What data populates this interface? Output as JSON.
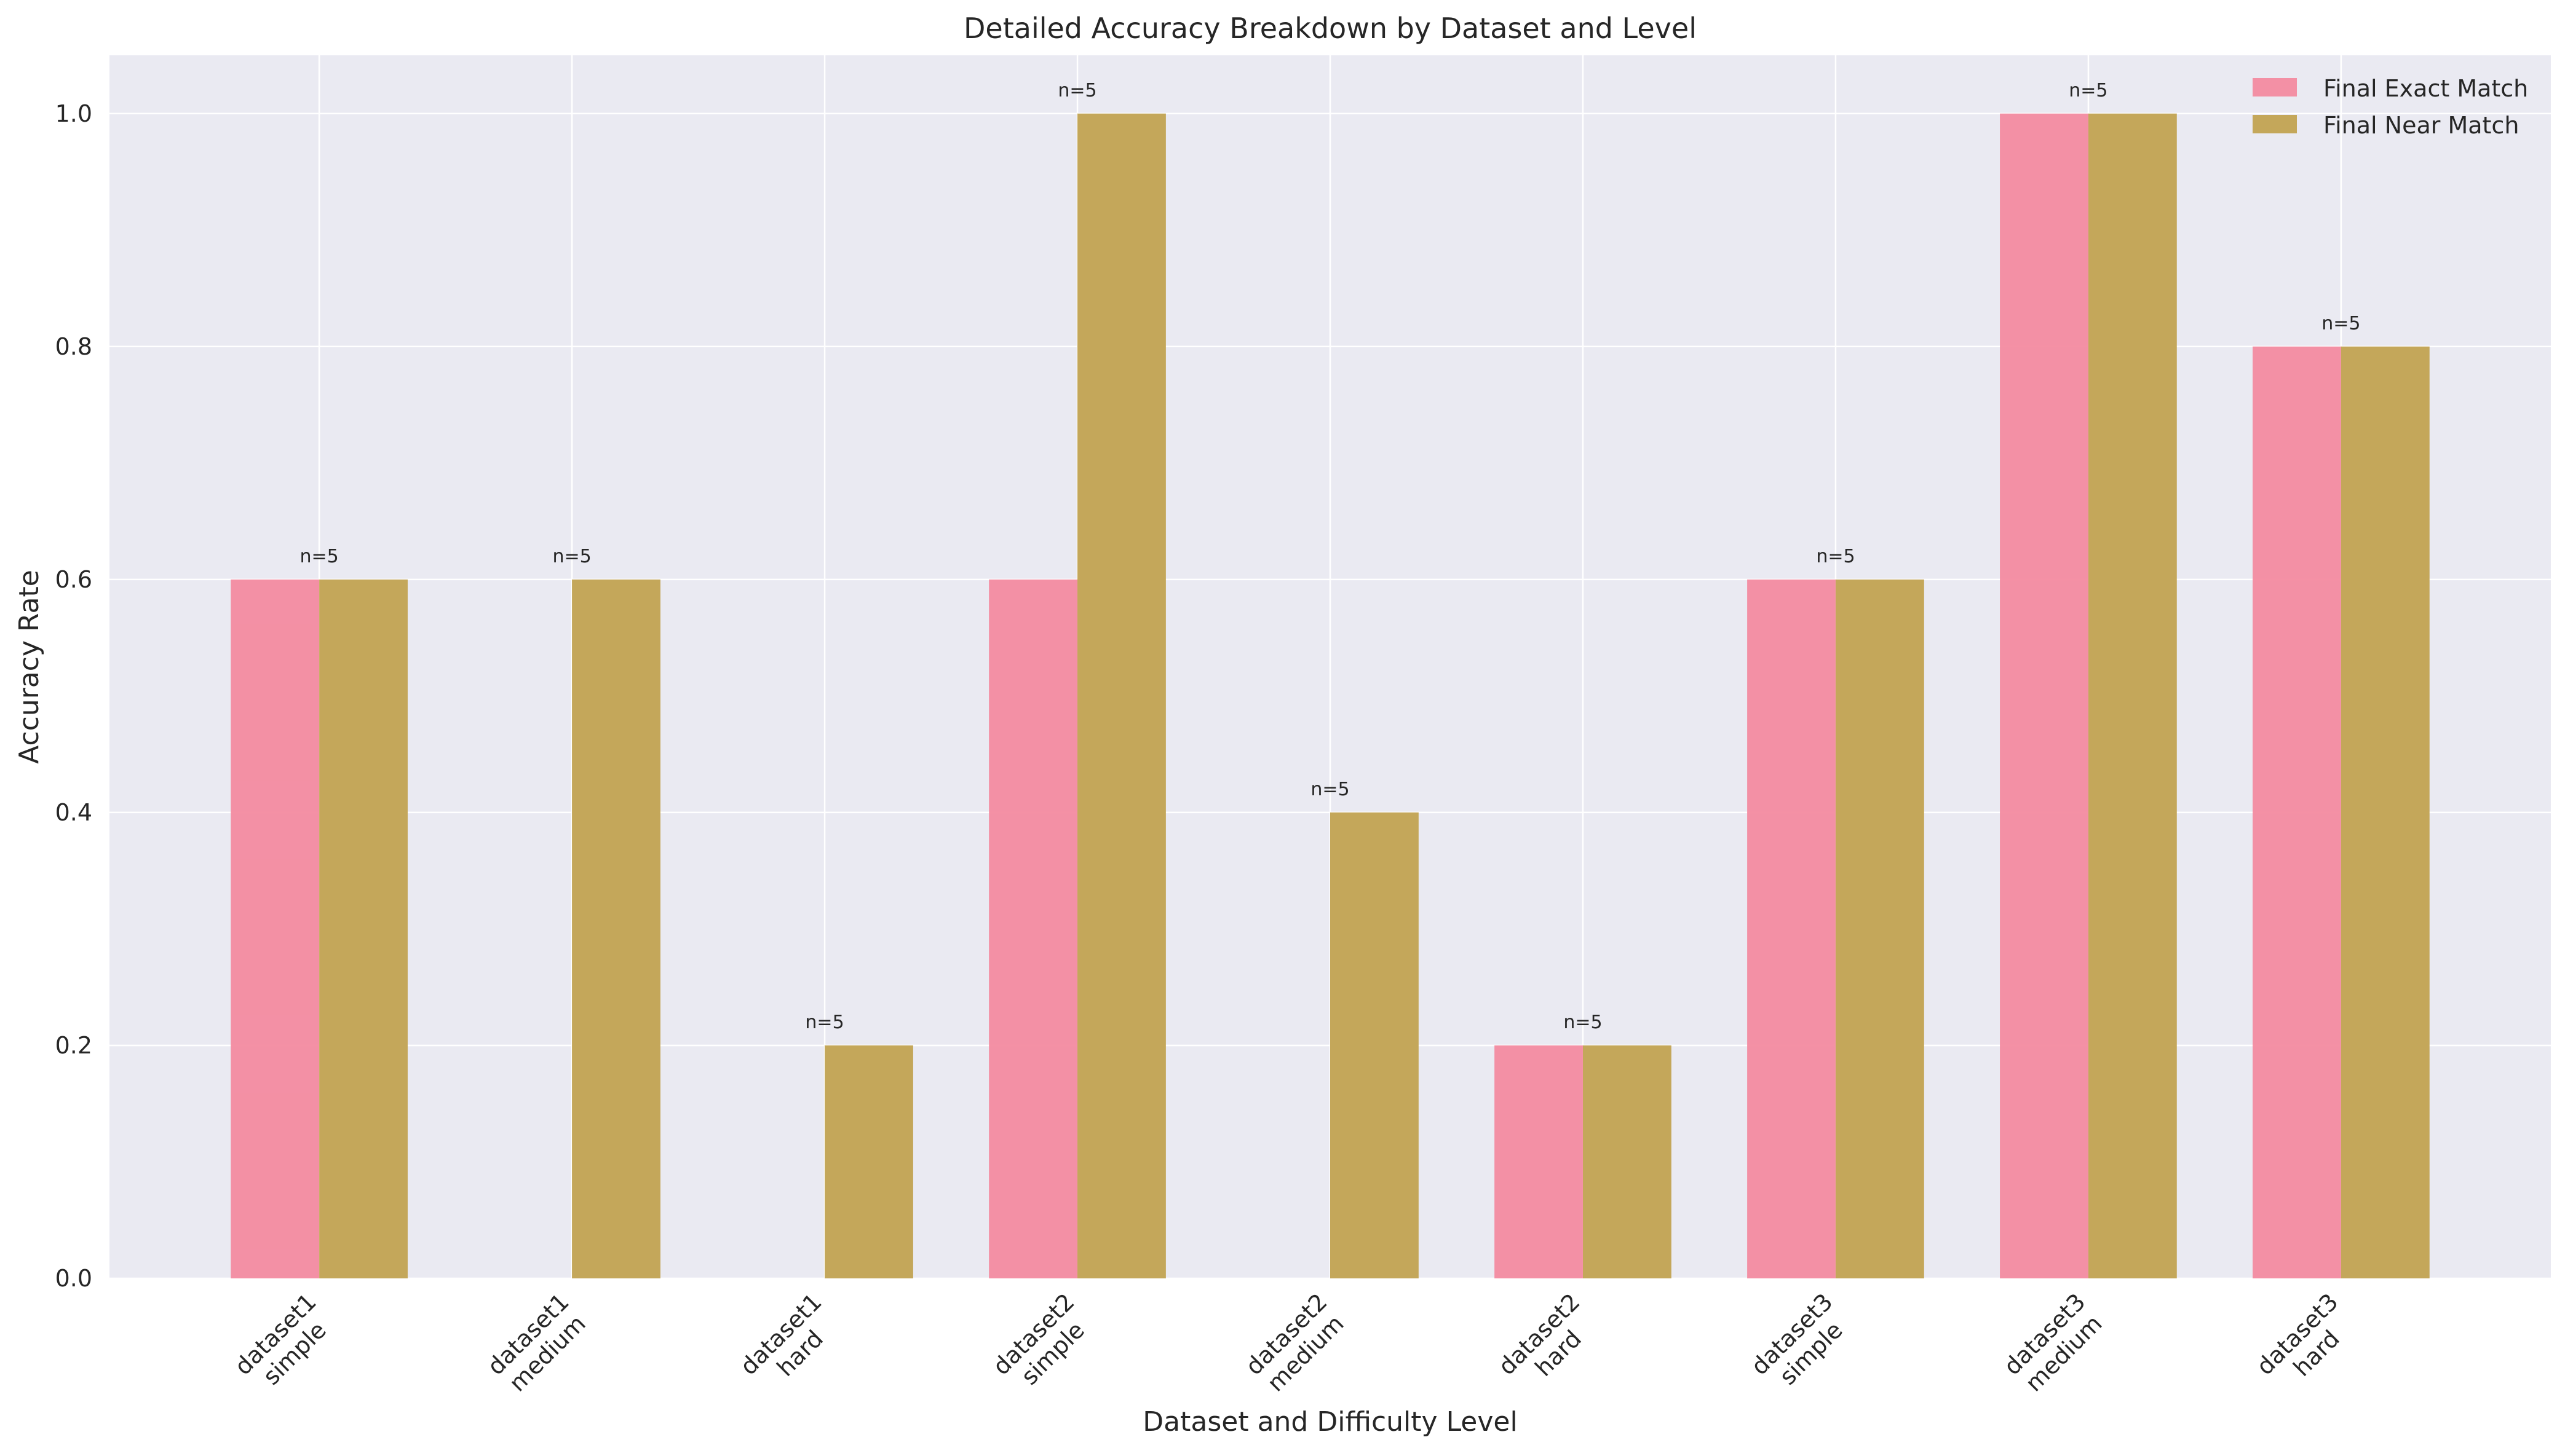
{
  "chart_data": {
    "type": "bar",
    "title": "Detailed Accuracy Breakdown by Dataset and Level",
    "xlabel": "Dataset and Difficulty Level",
    "ylabel": "Accuracy Rate",
    "ylim": [
      0,
      1.05
    ],
    "yticks": [
      "0.0",
      "0.2",
      "0.4",
      "0.6",
      "0.8",
      "1.0"
    ],
    "ytick_values": [
      0,
      0.2,
      0.4,
      0.6,
      0.8,
      1.0
    ],
    "grid": true,
    "legend_position": "top-right",
    "categories": [
      [
        "dataset1",
        "simple"
      ],
      [
        "dataset1",
        "medium"
      ],
      [
        "dataset1",
        "hard"
      ],
      [
        "dataset2",
        "simple"
      ],
      [
        "dataset2",
        "medium"
      ],
      [
        "dataset2",
        "hard"
      ],
      [
        "dataset3",
        "simple"
      ],
      [
        "dataset3",
        "medium"
      ],
      [
        "dataset3",
        "hard"
      ]
    ],
    "series": [
      {
        "name": "Final Exact Match",
        "color": "#f38ba0",
        "values": [
          0.6,
          0.0,
          0.0,
          0.6,
          0.0,
          0.2,
          0.6,
          1.0,
          0.8
        ]
      },
      {
        "name": "Final Near Match",
        "color": "#c4a75a",
        "values": [
          0.6,
          0.6,
          0.2,
          1.0,
          0.4,
          0.2,
          0.6,
          1.0,
          0.8
        ]
      }
    ],
    "annotations": [
      "n=5",
      "n=5",
      "n=5",
      "n=5",
      "n=5",
      "n=5",
      "n=5",
      "n=5",
      "n=5"
    ],
    "colors": {
      "plot_background": "#eaeaf2",
      "grid": "#ffffff",
      "text": "#262626"
    }
  }
}
